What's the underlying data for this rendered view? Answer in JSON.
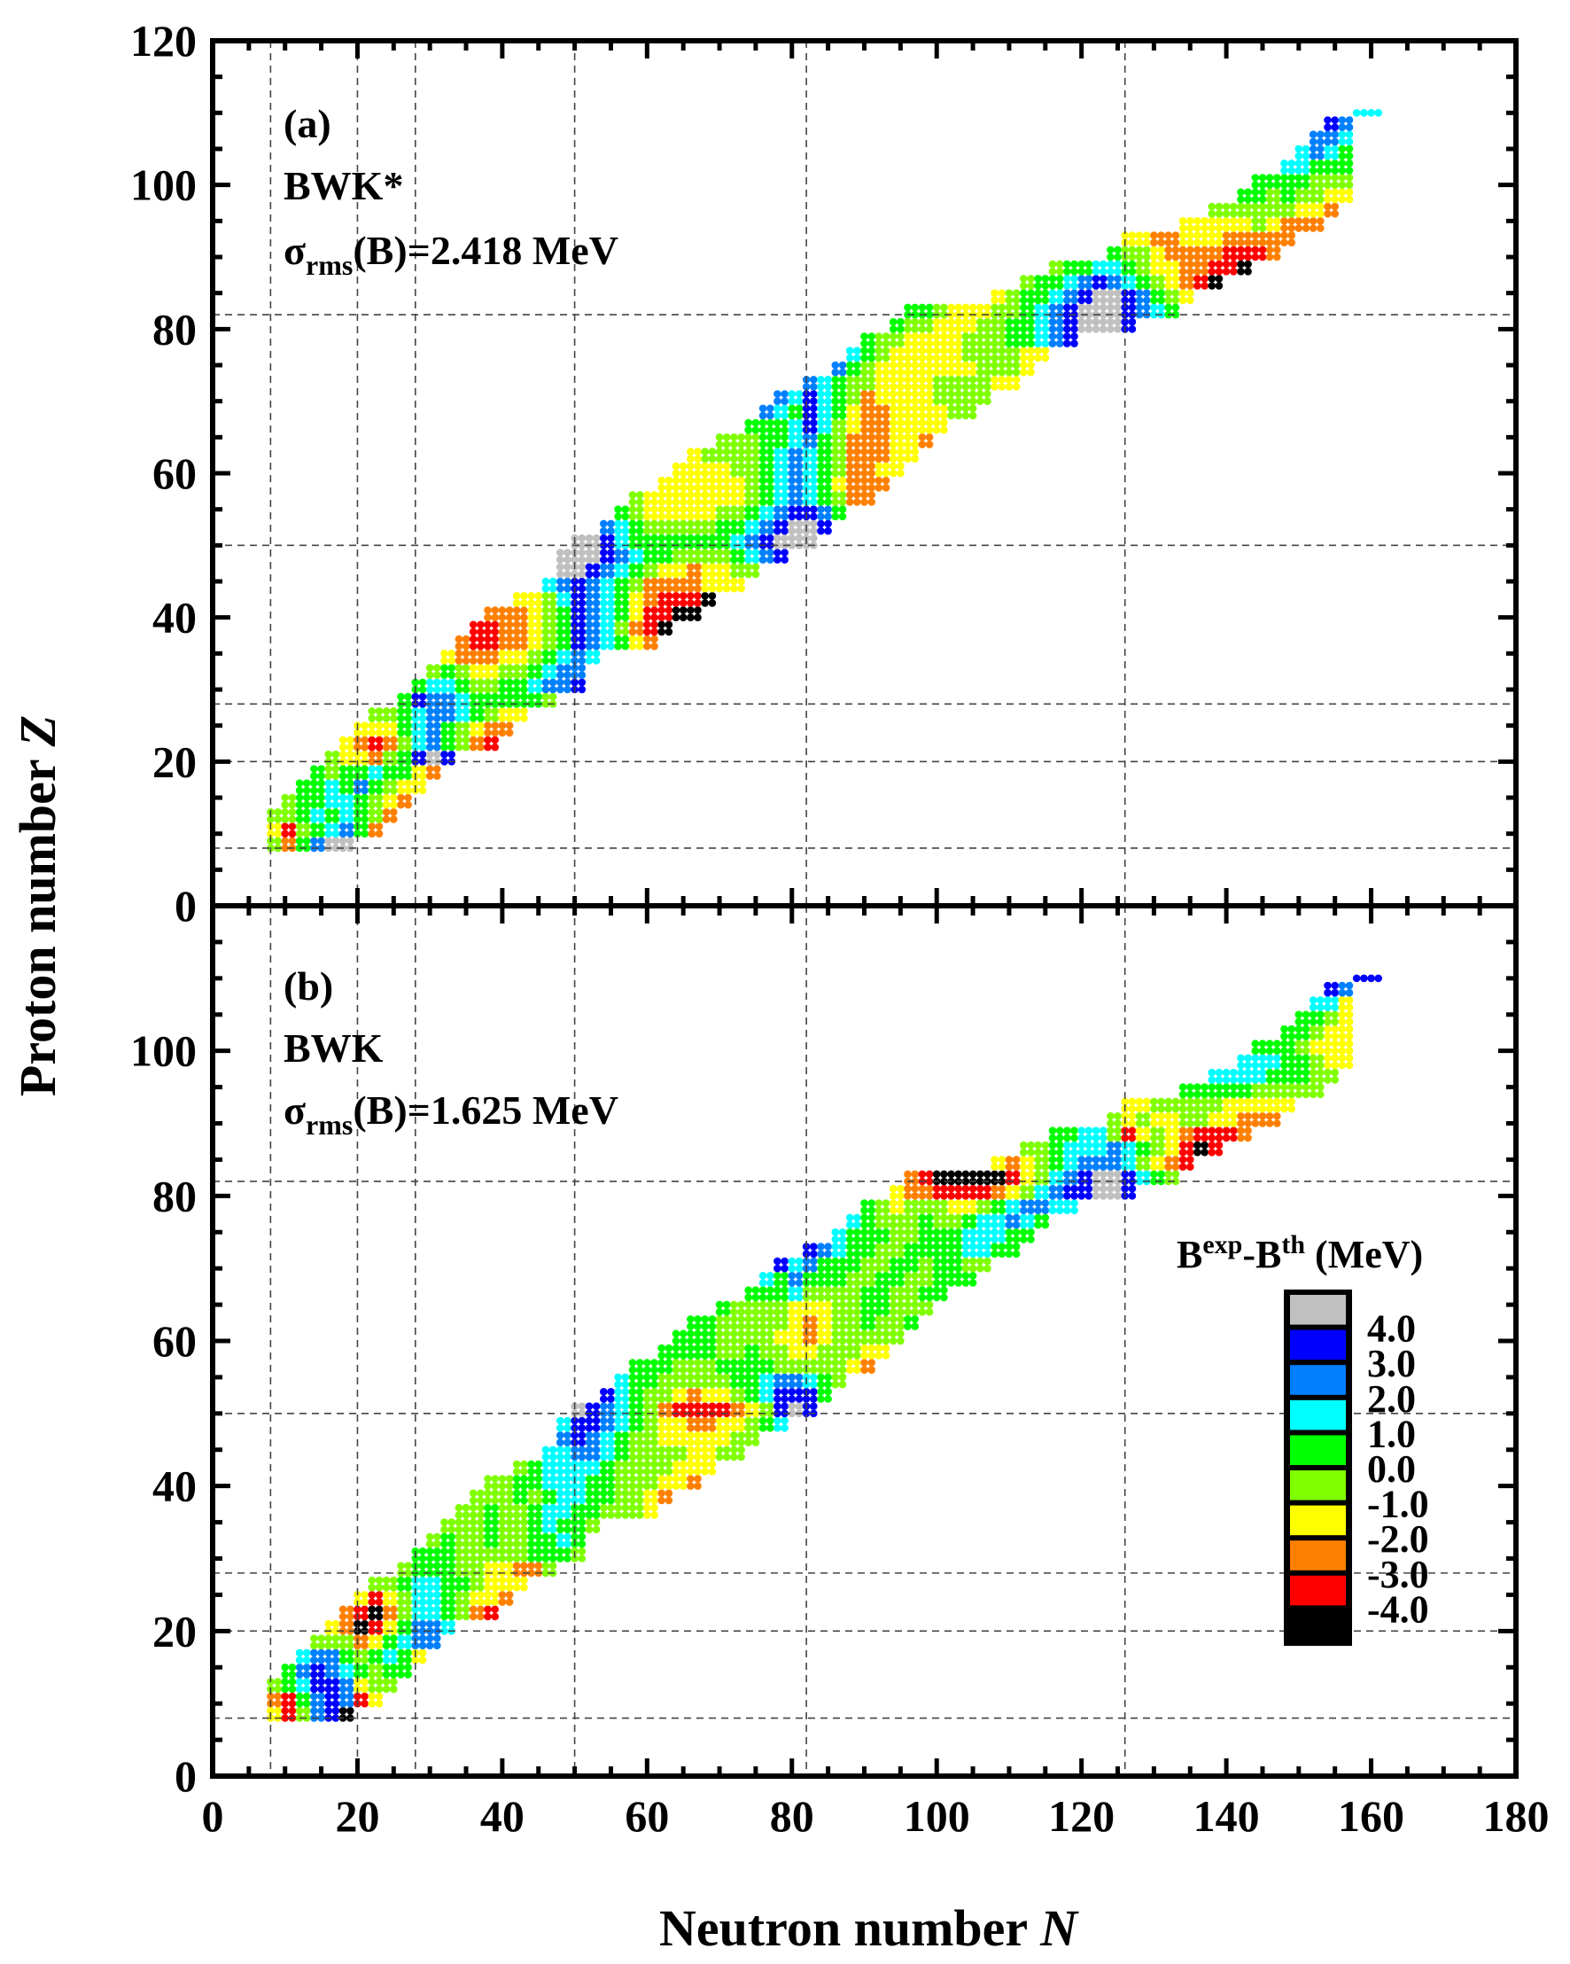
{
  "chart_data": {
    "type": "heatmap",
    "xlabel": "Neutron number",
    "xlabel_var": "N",
    "ylabel": "Proton number",
    "ylabel_var": "Z",
    "xlim": [
      0,
      180
    ],
    "ylim": [
      0,
      120
    ],
    "xticks": [
      0,
      20,
      40,
      60,
      80,
      100,
      120,
      140,
      160,
      180
    ],
    "yticks_top": [
      0,
      20,
      40,
      60,
      80,
      100,
      120
    ],
    "yticks_bottom": [
      0,
      20,
      40,
      60,
      80,
      100
    ],
    "magic_number_gridlines": {
      "N": [
        8,
        20,
        28,
        50,
        82,
        126
      ],
      "Z": [
        8,
        20,
        28,
        50,
        82
      ]
    },
    "colorbar": {
      "title_base": "B",
      "title_sup1": "exp",
      "title_mid": "-B",
      "title_sup2": "th",
      "title_unit": " (MeV)",
      "colors": [
        "#000000",
        "#ff0000",
        "#ff8000",
        "#ffff00",
        "#80ff00",
        "#00ff00",
        "#00ffff",
        "#0080ff",
        "#0000ff",
        "#c0c0c0"
      ],
      "tick_labels": [
        "-4.0",
        "-3.0",
        "-2.0",
        "-1.0",
        "0.0",
        "1.0",
        "2.0",
        "3.0",
        "4.0"
      ]
    },
    "grid_encoding": "rows of Z (step 2) starting at N=n0 (step 2); each digit is a colour bin index 0-9 (0: < -4 MeV ... 9: > 4 MeV)",
    "panels": [
      {
        "label": "(a)",
        "model": "BWK*",
        "sigma_prefix": "σ",
        "sigma_sub": "rms",
        "sigma_suffix": "(B)=2.418 MeV",
        "rows": [
          {
            "z": 8,
            "n0": 8,
            "s": "425799"
          },
          {
            "z": 10,
            "n0": 8,
            "s": "31456752"
          },
          {
            "z": 12,
            "n0": 8,
            "s": "445656542"
          },
          {
            "z": 14,
            "n0": 10,
            "s": "455665432"
          },
          {
            "z": 16,
            "n0": 12,
            "s": "556575433"
          },
          {
            "z": 18,
            "n0": 14,
            "s": "545565532"
          },
          {
            "z": 20,
            "n0": 16,
            "s": "433245898"
          },
          {
            "z": 22,
            "n0": 18,
            "s": "32124675421"
          },
          {
            "z": 24,
            "n0": 20,
            "s": "33356754322"
          },
          {
            "z": 26,
            "n0": 22,
            "s": "44567765433"
          },
          {
            "z": 28,
            "n0": 26,
            "s": "58776555554"
          },
          {
            "z": 30,
            "n0": 28,
            "s": "566544556778"
          },
          {
            "z": 32,
            "n0": 30,
            "s": "45433445677"
          },
          {
            "z": 34,
            "n0": 32,
            "s": "32223345676"
          },
          {
            "z": 36,
            "n0": 34,
            "s": "21122345876532"
          },
          {
            "z": 38,
            "n0": 36,
            "s": "11223458764210"
          },
          {
            "z": 40,
            "n0": 38,
            "s": "222345876531100"
          },
          {
            "z": 42,
            "n0": 42,
            "s": "33468765321110"
          },
          {
            "z": 44,
            "n0": 46,
            "s": "67876542222333"
          },
          {
            "z": 46,
            "n0": 48,
            "s": "99876543323344"
          },
          {
            "z": 48,
            "n0": 48,
            "s": "9998765544445678"
          },
          {
            "z": 50,
            "n0": 50,
            "s": "99865555555678999"
          },
          {
            "z": 52,
            "n0": 54,
            "s": "7654444455678998"
          },
          {
            "z": 54,
            "n0": 56,
            "s": "5433333445678875"
          },
          {
            "z": 56,
            "n0": 58,
            "s": "43333333456765422"
          },
          {
            "z": 58,
            "n0": 62,
            "s": "3333334567653222"
          },
          {
            "z": 60,
            "n0": 64,
            "s": "3333445676542233"
          },
          {
            "z": 62,
            "n0": 66,
            "s": "3444456765422233"
          },
          {
            "z": 64,
            "n0": 70,
            "s": "444556754222332"
          },
          {
            "z": 66,
            "n0": 74,
            "s": "55568643223333"
          },
          {
            "z": 68,
            "n0": 76,
            "s": "765865322333344"
          },
          {
            "z": 70,
            "n0": 78,
            "s": "768654233334444"
          },
          {
            "z": 72,
            "n0": 82,
            "s": "765443333444433"
          },
          {
            "z": 74,
            "n0": 86,
            "s": "75433333334443"
          },
          {
            "z": 76,
            "n0": 88,
            "s": "65433333444433"
          },
          {
            "z": 78,
            "n0": 90,
            "s": "544333344455678"
          },
          {
            "z": 80,
            "n0": 94,
            "s": "54433344556789998"
          },
          {
            "z": 82,
            "n0": 96,
            "s": "5543334456789998765"
          },
          {
            "z": 84,
            "n0": 108,
            "s": "34556789987543"
          },
          {
            "z": 86,
            "n0": 112,
            "s": "45567876543210"
          },
          {
            "z": 88,
            "n0": 116,
            "s": "45566543322110"
          },
          {
            "z": 90,
            "n0": 124,
            "s": "544322221112"
          },
          {
            "z": 92,
            "n0": 126,
            "s": "332233322222"
          },
          {
            "z": 94,
            "n0": 134,
            "s": "3333343222"
          },
          {
            "z": 96,
            "n0": 138,
            "s": "444444332"
          },
          {
            "z": 98,
            "n0": 142,
            "s": "55454433"
          },
          {
            "z": 100,
            "n0": 144,
            "s": "5555444"
          },
          {
            "z": 102,
            "n0": 148,
            "s": "66555"
          },
          {
            "z": 104,
            "n0": 150,
            "s": "6765"
          },
          {
            "z": 106,
            "n0": 152,
            "s": "776"
          },
          {
            "z": 108,
            "n0": 154,
            "s": "87"
          },
          {
            "z": 110,
            "n0": 158,
            "s": "66"
          }
        ]
      },
      {
        "label": "(b)",
        "model": "BWK",
        "sigma_prefix": "σ",
        "sigma_sub": "rms",
        "sigma_suffix": "(B)=1.625 MeV",
        "rows": [
          {
            "z": 8,
            "n0": 8,
            "s": "314780"
          },
          {
            "z": 10,
            "n0": 8,
            "s": "21578713"
          },
          {
            "z": 12,
            "n0": 8,
            "s": "456887344"
          },
          {
            "z": 14,
            "n0": 10,
            "s": "578765455"
          },
          {
            "z": 16,
            "n0": 12,
            "s": "677545653"
          },
          {
            "z": 18,
            "n0": 14,
            "s": "444235677"
          },
          {
            "z": 20,
            "n0": 16,
            "s": "320135776"
          },
          {
            "z": 22,
            "n0": 18,
            "s": "21024665421"
          },
          {
            "z": 24,
            "n0": 20,
            "s": "31346654332"
          },
          {
            "z": 26,
            "n0": 22,
            "s": "44566554333"
          },
          {
            "z": 28,
            "n0": 26,
            "s": "45554433224"
          },
          {
            "z": 30,
            "n0": 28,
            "s": "555444445554"
          },
          {
            "z": 32,
            "n0": 30,
            "s": "45445445565"
          },
          {
            "z": 34,
            "n0": 32,
            "s": "44454456554"
          },
          {
            "z": 36,
            "n0": 34,
            "s": "44544566554443"
          },
          {
            "z": 38,
            "n0": 36,
            "s": "44454566554432"
          },
          {
            "z": 40,
            "n0": 38,
            "s": "445566655444332"
          },
          {
            "z": 42,
            "n0": 42,
            "s": "45666654444333"
          },
          {
            "z": 44,
            "n0": 46,
            "s": "66776544443344"
          },
          {
            "z": 46,
            "n0": 48,
            "s": "78765443333344"
          },
          {
            "z": 48,
            "n0": 48,
            "s": "6887654332233456"
          },
          {
            "z": 50,
            "n0": 50,
            "s": "98765421111234898"
          },
          {
            "z": 52,
            "n0": 54,
            "s": "8654432334568885"
          },
          {
            "z": 54,
            "n0": 56,
            "s": "6554444455677654"
          },
          {
            "z": 56,
            "n0": 58,
            "s": "55544455554444432"
          },
          {
            "z": 58,
            "n0": 62,
            "s": "5555445443344433"
          },
          {
            "z": 60,
            "n0": 64,
            "s": "5554444332344444"
          },
          {
            "z": 62,
            "n0": 66,
            "s": "5544444323445445"
          },
          {
            "z": 64,
            "n0": 70,
            "s": "544443334455444"
          },
          {
            "z": 66,
            "n0": 74,
            "s": "55564444554455"
          },
          {
            "z": 68,
            "n0": 76,
            "s": "657555445544555"
          },
          {
            "z": 70,
            "n0": 78,
            "s": "867555445545544"
          },
          {
            "z": 72,
            "n0": 82,
            "s": "876554455556655"
          },
          {
            "z": 74,
            "n0": 86,
            "s": "65554455566655"
          },
          {
            "z": 76,
            "n0": 88,
            "s": "65444544566765"
          },
          {
            "z": 78,
            "n0": 90,
            "s": "543444334567766"
          },
          {
            "z": 80,
            "n0": 94,
            "s": "32211112346788998"
          },
          {
            "z": 82,
            "n0": 96,
            "s": "2100000134678998654"
          },
          {
            "z": 84,
            "n0": 108,
            "s": "32345677764321"
          },
          {
            "z": 86,
            "n0": 112,
            "s": "44566676543101"
          },
          {
            "z": 88,
            "n0": 116,
            "s": "55664134321112"
          },
          {
            "z": 90,
            "n0": 124,
            "s": "434334433222"
          },
          {
            "z": 92,
            "n0": 126,
            "s": "334444433333"
          },
          {
            "z": 94,
            "n0": 134,
            "s": "5555544444"
          },
          {
            "z": 96,
            "n0": 138,
            "s": "666655544"
          },
          {
            "z": 98,
            "n0": 142,
            "s": "66655433"
          },
          {
            "z": 100,
            "n0": 144,
            "s": "5554333"
          },
          {
            "z": 102,
            "n0": 148,
            "s": "55433"
          },
          {
            "z": 104,
            "n0": 150,
            "s": "5543"
          },
          {
            "z": 106,
            "n0": 152,
            "s": "663"
          },
          {
            "z": 108,
            "n0": 154,
            "s": "87"
          },
          {
            "z": 110,
            "n0": 158,
            "s": "88"
          }
        ]
      }
    ]
  }
}
